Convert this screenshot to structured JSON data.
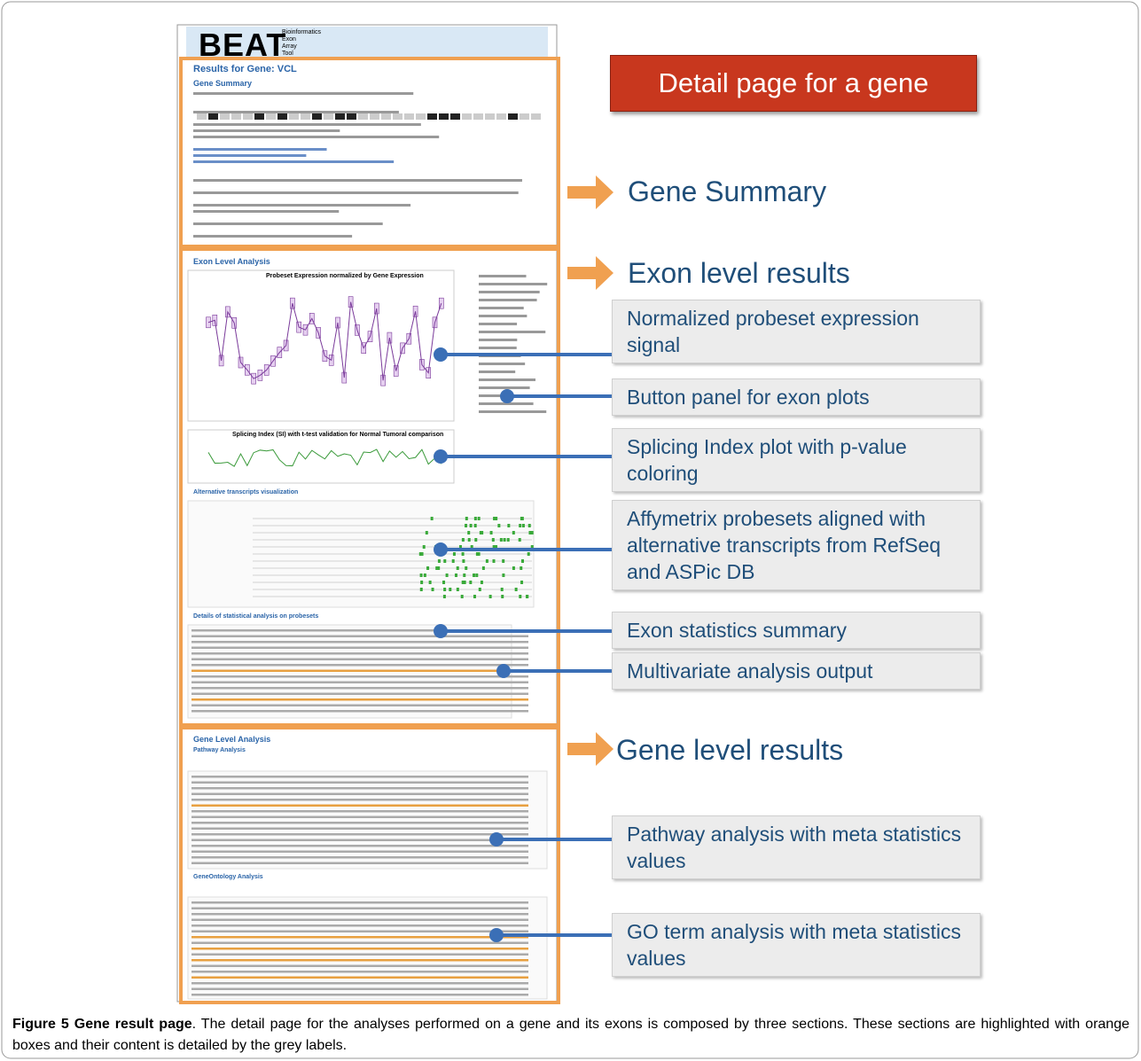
{
  "screenshot": {
    "logo": "BEAT",
    "logo_sub": [
      "Bioinformatics",
      "Exon",
      "Array",
      "Tool"
    ],
    "results_title": "Results for Gene: VCL",
    "gene_summary": "Gene Summary",
    "exon_level_analysis": "Exon Level Analysis",
    "probeset_plot_title": "Probeset Expression normalized by Gene Expression",
    "splicing_plot_title": "Splicing Index (SI) with t-test validation for Normal  Tumoral  comparison",
    "alt_transcripts": "Alternative transcripts visualization",
    "details_stats": "Details of statistical analysis on probesets",
    "gene_level_analysis": "Gene Level Analysis",
    "pathway_analysis": "Pathway Analysis",
    "geneontology_analysis": "GeneOntology Analysis"
  },
  "callout": "Detail page for a gene",
  "sections": [
    "Gene Summary",
    "Exon level results",
    "Gene level results"
  ],
  "labels": [
    "Normalized probeset expression signal",
    "Button panel for exon plots",
    "Splicing Index plot with p-value coloring",
    "Affymetrix probesets aligned with alternative transcripts from RefSeq and ASPic DB",
    "Exon statistics summary",
    "Multivariate analysis output",
    "Pathway analysis with meta statistics values",
    "GO term analysis with meta statistics values"
  ],
  "caption": {
    "label": "Figure 5 Gene result page",
    "text": ". The detail page for the analyses performed on a gene and its exons is composed by three sections. These sections are highlighted with orange boxes and their content is detailed by the grey labels."
  }
}
